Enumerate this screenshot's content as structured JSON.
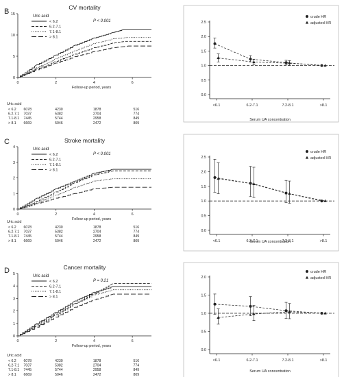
{
  "chart_data": [
    {
      "type": "line",
      "panel": "B",
      "title": "CV mortality",
      "pvalue": "P < 0.001",
      "xlabel": "Follow-up period, years",
      "xlim": [
        0,
        7
      ],
      "xticks": [
        "0",
        "2",
        "4",
        "6"
      ],
      "ylim": [
        0,
        15
      ],
      "yticks": [
        "0",
        "5",
        "10",
        "15"
      ],
      "legend_title": "Uric acid",
      "legend_position": "top-left",
      "series": [
        {
          "name": "< 6.2",
          "style": "solid",
          "points": [
            [
              0,
              0
            ],
            [
              1,
              3.0
            ],
            [
              2,
              5.3
            ],
            [
              3,
              7.6
            ],
            [
              4,
              9.3
            ],
            [
              5,
              10.6
            ],
            [
              5.5,
              11.2
            ],
            [
              7,
              11.2
            ]
          ]
        },
        {
          "name": "6.2-7.1",
          "style": "dashed",
          "points": [
            [
              0,
              0
            ],
            [
              1,
              2.0
            ],
            [
              2,
              3.8
            ],
            [
              3,
              5.5
            ],
            [
              4,
              7.0
            ],
            [
              5,
              8.1
            ],
            [
              5.6,
              8.5
            ],
            [
              7,
              8.5
            ]
          ]
        },
        {
          "name": "7.1-8.1",
          "style": "dotted",
          "points": [
            [
              0,
              0
            ],
            [
              1,
              2.3
            ],
            [
              2,
              4.4
            ],
            [
              3,
              6.3
            ],
            [
              4,
              8.0
            ],
            [
              5,
              9.1
            ],
            [
              5.7,
              9.4
            ],
            [
              7,
              9.4
            ]
          ]
        },
        {
          "name": "> 8.1",
          "style": "longdash",
          "points": [
            [
              0,
              0
            ],
            [
              1,
              1.8
            ],
            [
              2,
              3.4
            ],
            [
              3,
              4.9
            ],
            [
              4,
              6.1
            ],
            [
              5,
              7.0
            ],
            [
              5.8,
              7.4
            ],
            [
              7,
              7.4
            ]
          ]
        }
      ],
      "risk_table": {
        "title": "Uric acid",
        "rows": [
          {
            "label": "< 6.2",
            "values": [
              "6078",
              "4230",
              "1878",
              "516"
            ]
          },
          {
            "label": "6.2-7.1",
            "values": [
              "7037",
              "5382",
              "2704",
              "774"
            ]
          },
          {
            "label": "7.1-8.1",
            "values": [
              "7445",
              "5744",
              "2958",
              "849"
            ]
          },
          {
            "label": "> 8.1",
            "values": [
              "6669",
              "5046",
              "2472",
              "809"
            ]
          }
        ]
      }
    },
    {
      "type": "line",
      "panel": "C",
      "title": "Stroke  mortality",
      "pvalue": "P < 0.001",
      "xlabel": "Follow-up period, years",
      "xlim": [
        0,
        7
      ],
      "xticks": [
        "0",
        "2",
        "4",
        "6"
      ],
      "ylim": [
        0,
        4
      ],
      "yticks": [
        "0",
        "1",
        "2",
        "3",
        "4"
      ],
      "legend_title": "Uric acid",
      "legend_position": "top-left",
      "series": [
        {
          "name": "< 6.2",
          "style": "solid",
          "points": [
            [
              0,
              0
            ],
            [
              1,
              0.7
            ],
            [
              2,
              1.3
            ],
            [
              3,
              1.8
            ],
            [
              4,
              2.3
            ],
            [
              5,
              2.55
            ],
            [
              7,
              2.55
            ]
          ]
        },
        {
          "name": "6.2-7.1",
          "style": "dashed",
          "points": [
            [
              0,
              0
            ],
            [
              1,
              0.5
            ],
            [
              2,
              1.1
            ],
            [
              3,
              1.7
            ],
            [
              4,
              2.2
            ],
            [
              5,
              2.45
            ],
            [
              7,
              2.45
            ]
          ]
        },
        {
          "name": "7.1-8.1",
          "style": "dotted",
          "points": [
            [
              0,
              0
            ],
            [
              1,
              0.4
            ],
            [
              2,
              0.9
            ],
            [
              3,
              1.4
            ],
            [
              4,
              1.8
            ],
            [
              5,
              1.95
            ],
            [
              7,
              1.95
            ]
          ]
        },
        {
          "name": "> 8.1",
          "style": "longdash",
          "points": [
            [
              0,
              0
            ],
            [
              1,
              0.35
            ],
            [
              2,
              0.7
            ],
            [
              3,
              1.0
            ],
            [
              4,
              1.3
            ],
            [
              5,
              1.4
            ],
            [
              7,
              1.4
            ]
          ]
        }
      ],
      "risk_table": {
        "title": "Uric acid",
        "rows": [
          {
            "label": "< 6.2",
            "values": [
              "6078",
              "4230",
              "1878",
              "516"
            ]
          },
          {
            "label": "6.2-7.1",
            "values": [
              "7037",
              "5382",
              "2704",
              "774"
            ]
          },
          {
            "label": "7.1-8.1",
            "values": [
              "7445",
              "5744",
              "2958",
              "849"
            ]
          },
          {
            "label": "> 8.1",
            "values": [
              "6669",
              "5046",
              "2472",
              "809"
            ]
          }
        ]
      }
    },
    {
      "type": "line",
      "panel": "D",
      "title": "Cancer mortality",
      "pvalue": "P = 0.21",
      "xlabel": "Follow-up period, years",
      "xlim": [
        0,
        7
      ],
      "xticks": [
        "0",
        "2",
        "4",
        "6"
      ],
      "ylim": [
        0,
        5
      ],
      "yticks": [
        "0",
        "1",
        "2",
        "3",
        "4",
        "5"
      ],
      "legend_title": "Uric acid",
      "legend_position": "top-left",
      "series": [
        {
          "name": "< 6.2",
          "style": "solid",
          "points": [
            [
              0,
              0
            ],
            [
              1,
              1.0
            ],
            [
              2,
              1.9
            ],
            [
              3,
              2.8
            ],
            [
              4,
              3.5
            ],
            [
              5,
              3.95
            ],
            [
              7,
              3.95
            ]
          ]
        },
        {
          "name": "6.2-7.1",
          "style": "dashed",
          "points": [
            [
              0,
              0
            ],
            [
              1,
              0.8
            ],
            [
              2,
              1.7
            ],
            [
              3,
              2.6
            ],
            [
              4,
              3.4
            ],
            [
              5,
              4.2
            ],
            [
              7,
              4.2
            ]
          ]
        },
        {
          "name": "7.1-8.1",
          "style": "dotted",
          "points": [
            [
              0,
              0
            ],
            [
              1,
              0.9
            ],
            [
              2,
              1.8
            ],
            [
              3,
              2.6
            ],
            [
              4,
              3.3
            ],
            [
              5,
              3.7
            ],
            [
              7,
              3.7
            ]
          ]
        },
        {
          "name": "> 8.1",
          "style": "longdash",
          "points": [
            [
              0,
              0
            ],
            [
              1,
              0.7
            ],
            [
              2,
              1.5
            ],
            [
              3,
              2.3
            ],
            [
              4,
              2.9
            ],
            [
              5,
              3.35
            ],
            [
              7,
              3.35
            ]
          ]
        }
      ],
      "risk_table": {
        "title": "Uric acid",
        "rows": [
          {
            "label": "< 6.2",
            "values": [
              "6078",
              "4230",
              "1878",
              "516"
            ]
          },
          {
            "label": "6.2-7.1",
            "values": [
              "7037",
              "5382",
              "2704",
              "774"
            ]
          },
          {
            "label": "7.1-8.1",
            "values": [
              "7445",
              "5744",
              "2958",
              "849"
            ]
          },
          {
            "label": "> 8.1",
            "values": [
              "6669",
              "5046",
              "2472",
              "809"
            ]
          }
        ]
      }
    },
    {
      "type": "scatter",
      "panel": "B",
      "xlabel": "Serum UA concentration",
      "categories": [
        "<6.1",
        "6.2-7.1",
        "7.2-8.1",
        ">8.1"
      ],
      "ylim": [
        0,
        2.5
      ],
      "yticks": [
        "0.0",
        "0.5",
        "1.0",
        "1.5",
        "2.0",
        "2.5"
      ],
      "reference_y": 1.0,
      "legend_position": "top-right",
      "series": [
        {
          "name": "crude HR",
          "marker": "circle",
          "values": [
            1.75,
            1.22,
            1.1,
            1.0
          ],
          "ci_low": [
            1.6,
            1.12,
            1.02,
            1.0
          ],
          "ci_high": [
            1.95,
            1.34,
            1.18,
            1.0
          ]
        },
        {
          "name": "adjusted HR",
          "marker": "triangle",
          "values": [
            1.26,
            1.12,
            1.08,
            1.0
          ],
          "ci_low": [
            1.12,
            1.03,
            1.0,
            1.0
          ],
          "ci_high": [
            1.4,
            1.22,
            1.17,
            1.0
          ]
        }
      ]
    },
    {
      "type": "scatter",
      "panel": "C",
      "xlabel": "Serum UA concentration",
      "categories": [
        "<6.1",
        "6.2-7.1",
        "7.2-8.1",
        ">8.1"
      ],
      "ylim": [
        0,
        2.5
      ],
      "yticks": [
        "0.0",
        "0.5",
        "1.0",
        "1.5",
        "2.0",
        "2.5"
      ],
      "reference_y": 1.0,
      "legend_position": "top-right",
      "series": [
        {
          "name": "crude HR",
          "marker": "circle",
          "values": [
            1.8,
            1.6,
            1.27,
            1.0
          ],
          "ci_low": [
            1.3,
            1.15,
            0.95,
            1.0
          ],
          "ci_high": [
            2.42,
            2.18,
            1.7,
            1.0
          ]
        },
        {
          "name": "adjusted HR",
          "marker": "triangle",
          "values": [
            1.76,
            1.58,
            1.25,
            1.0
          ],
          "ci_low": [
            1.25,
            1.12,
            0.92,
            1.0
          ],
          "ci_high": [
            2.3,
            2.15,
            1.68,
            1.0
          ]
        }
      ]
    },
    {
      "type": "scatter",
      "panel": "D",
      "xlabel": "Serum UA concentration",
      "categories": [
        "<6.1",
        "6.2-7.1",
        "7.2-8.1",
        ">8.1"
      ],
      "ylim": [
        0,
        2.0
      ],
      "yticks": [
        "0.0",
        "0.5",
        "1.0",
        "1.5",
        "2.0"
      ],
      "reference_y": 1.0,
      "legend_position": "top-right",
      "series": [
        {
          "name": "crude HR",
          "marker": "circle",
          "values": [
            1.25,
            1.19,
            1.07,
            1.0
          ],
          "ci_low": [
            0.97,
            0.93,
            0.86,
            1.0
          ],
          "ci_high": [
            1.53,
            1.46,
            1.3,
            1.0
          ]
        },
        {
          "name": "adjusted HR",
          "marker": "triangle",
          "values": [
            0.88,
            0.98,
            1.04,
            1.0
          ],
          "ci_low": [
            0.7,
            0.8,
            0.85,
            1.0
          ],
          "ci_high": [
            1.12,
            1.22,
            1.27,
            1.0
          ]
        }
      ]
    }
  ]
}
